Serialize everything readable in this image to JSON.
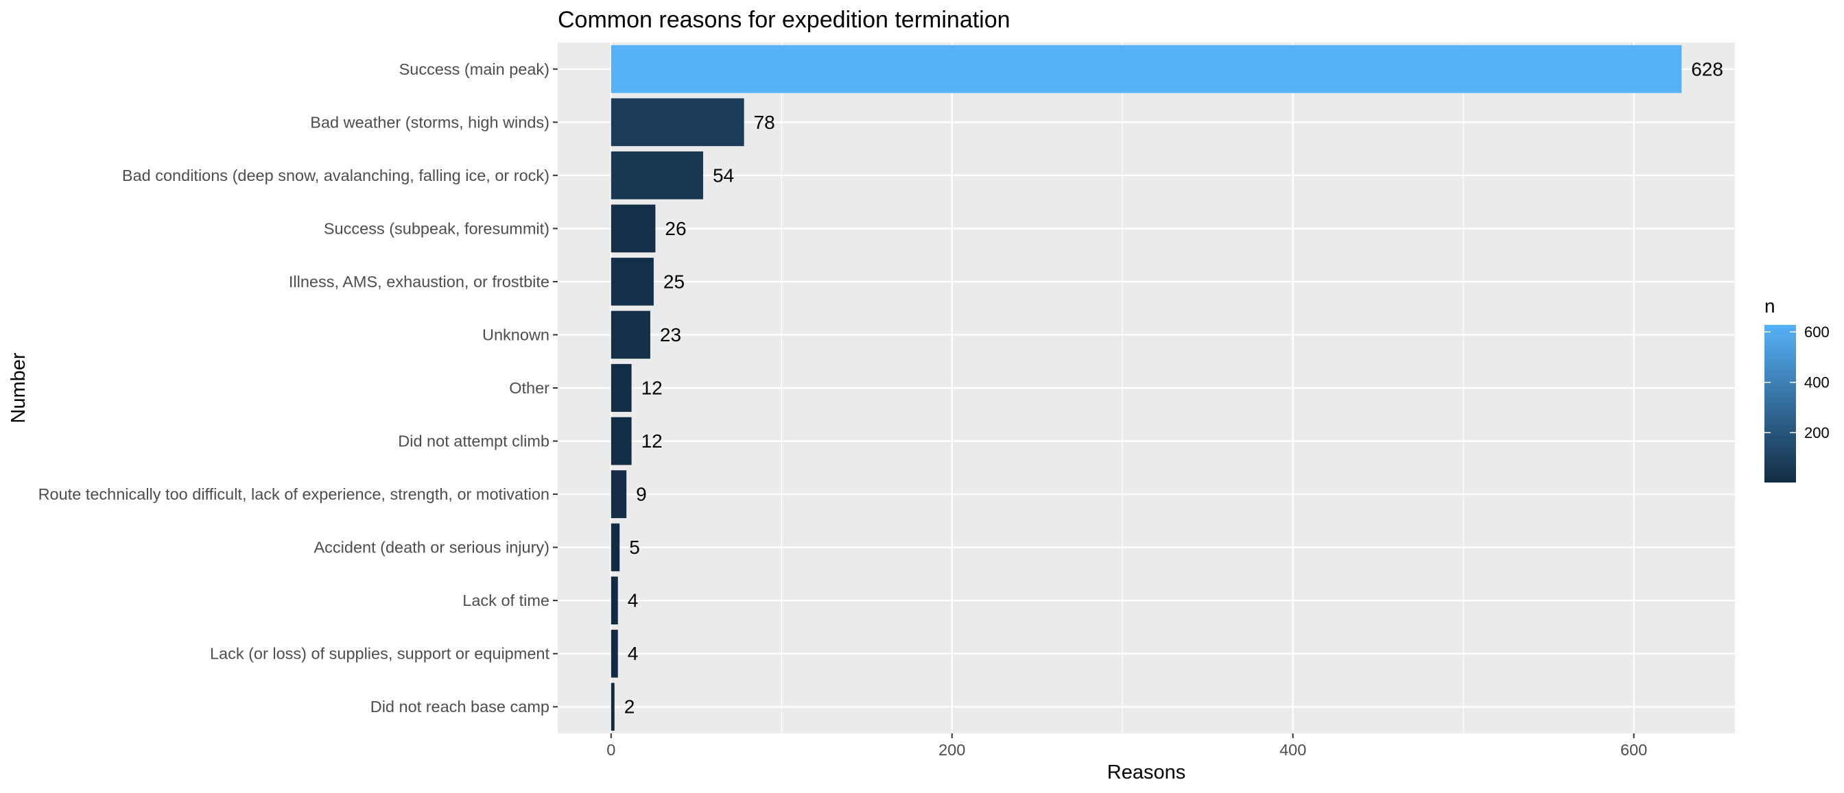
{
  "chart_data": {
    "type": "bar",
    "orientation": "horizontal",
    "title": "Common reasons for expedition termination",
    "xlabel": "Reasons",
    "ylabel": "Number",
    "categories": [
      "Success (main peak)",
      "Bad weather (storms, high winds)",
      "Bad conditions (deep snow, avalanching, falling ice, or rock)",
      "Success (subpeak, foresummit)",
      "Illness, AMS, exhaustion, or frostbite",
      "Unknown",
      "Other",
      "Did not attempt climb",
      "Route technically too difficult, lack of experience, strength, or motivation",
      "Accident (death or serious injury)",
      "Lack of time",
      "Lack (or loss) of supplies, support or equipment",
      "Did not reach base camp"
    ],
    "values": [
      628,
      78,
      54,
      26,
      25,
      23,
      12,
      12,
      9,
      5,
      4,
      4,
      2
    ],
    "data_labels": [
      "628",
      "78",
      "54",
      "26",
      "25",
      "23",
      "12",
      "12",
      "9",
      "5",
      "4",
      "4",
      "2"
    ],
    "xlim": [
      -31.3,
      659.3
    ],
    "x_ticks": [
      0,
      200,
      400,
      600
    ],
    "x_tick_labels": [
      "0",
      "200",
      "400",
      "600"
    ],
    "grid": true,
    "panel_background": "#ebebeb",
    "grid_color": "#ffffff",
    "fill_scale": {
      "title": "n",
      "low_color": "#132b43",
      "high_color": "#56b1f7",
      "range": [
        2,
        628
      ],
      "breaks": [
        200,
        400,
        600
      ],
      "break_labels": [
        "200",
        "400",
        "600"
      ]
    },
    "legend_position": "right"
  }
}
